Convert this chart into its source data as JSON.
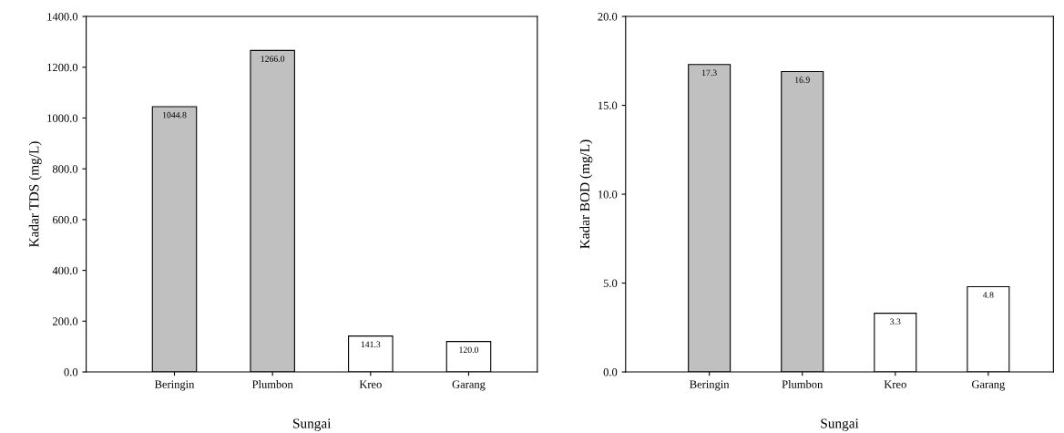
{
  "chart_data": [
    {
      "type": "bar",
      "categories": [
        "Beringin",
        "Plumbon",
        "Kreo",
        "Garang"
      ],
      "values": [
        1044.8,
        1266.0,
        141.3,
        120.0
      ],
      "value_labels": [
        "1044.8",
        "1266.0",
        "141.3",
        "120.0"
      ],
      "colors": [
        "#c0c0c0",
        "#c0c0c0",
        "#ffffff",
        "#ffffff"
      ],
      "xlabel": "Sungai",
      "ylabel": "Kadar TDS (mg/L)",
      "ylim": [
        0,
        1400
      ],
      "yticks": [
        {
          "value": 0,
          "label": "0.0"
        },
        {
          "value": 200,
          "label": "200.0"
        },
        {
          "value": 400,
          "label": "400.0"
        },
        {
          "value": 600,
          "label": "600.0"
        },
        {
          "value": 800,
          "label": "800.0"
        },
        {
          "value": 1000,
          "label": "1000.0"
        },
        {
          "value": 1200,
          "label": "1200.0"
        },
        {
          "value": 1400,
          "label": "1400.0"
        }
      ],
      "grid": false,
      "legend": false
    },
    {
      "type": "bar",
      "categories": [
        "Beringin",
        "Plumbon",
        "Kreo",
        "Garang"
      ],
      "values": [
        17.3,
        16.9,
        3.3,
        4.8
      ],
      "value_labels": [
        "17.3",
        "16.9",
        "3.3",
        "4.8"
      ],
      "colors": [
        "#c0c0c0",
        "#c0c0c0",
        "#ffffff",
        "#ffffff"
      ],
      "xlabel": "Sungai",
      "ylabel": "Kadar BOD (mg/L)",
      "ylim": [
        0,
        20
      ],
      "yticks": [
        {
          "value": 0,
          "label": "0.0"
        },
        {
          "value": 5,
          "label": "5.0"
        },
        {
          "value": 10,
          "label": "10.0"
        },
        {
          "value": 15,
          "label": "15.0"
        },
        {
          "value": 20,
          "label": "20.0"
        }
      ],
      "grid": false,
      "legend": false
    }
  ]
}
